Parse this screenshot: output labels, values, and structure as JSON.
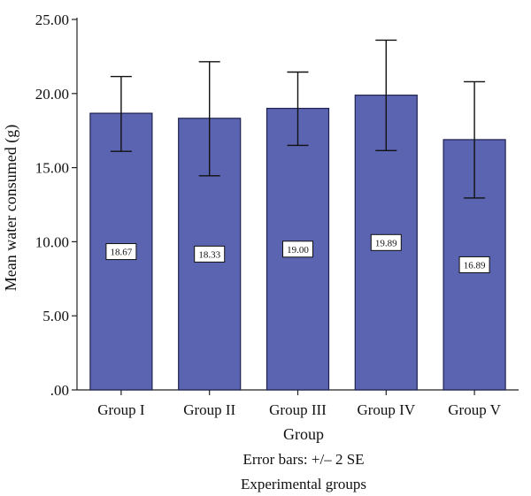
{
  "chart_data": {
    "type": "bar",
    "categories": [
      "Group I",
      "Group II",
      "Group III",
      "Group IV",
      "Group V"
    ],
    "values": [
      18.67,
      18.33,
      19.0,
      19.89,
      16.89
    ],
    "data_labels": [
      "18.67",
      "18.33",
      "19.00",
      "19.89",
      "16.89"
    ],
    "error_bars": {
      "lower": [
        16.1,
        14.45,
        16.5,
        16.15,
        12.95
      ],
      "upper": [
        21.15,
        22.15,
        21.45,
        23.6,
        20.8
      ]
    },
    "ylabel": "Mean water consumed (g)",
    "xlabel": "Group",
    "notes": [
      "Error bars: +/– 2 SE",
      "Experimental groups"
    ],
    "ylim": [
      0,
      25
    ],
    "yticks": [
      0,
      5,
      10,
      15,
      20,
      25
    ],
    "ytick_labels": [
      ".00",
      "5.00",
      "10.00",
      "15.00",
      "20.00",
      "25.00"
    ],
    "grid": false,
    "colors": {
      "bar": "#5a64b0",
      "bar_edge": "#1e2150"
    }
  }
}
